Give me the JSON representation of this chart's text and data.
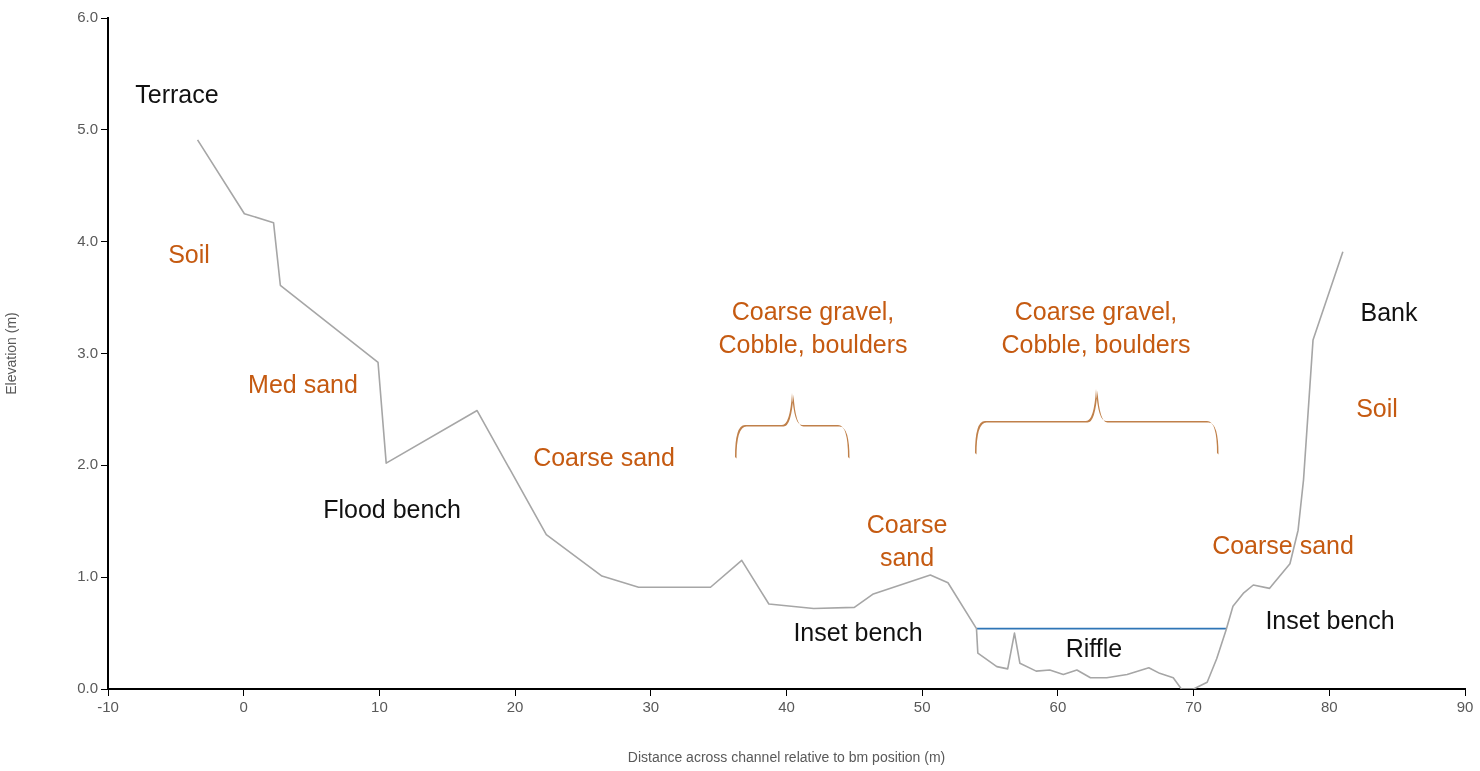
{
  "chart_data": {
    "type": "line",
    "xlabel": "Distance across channel relative to bm position (m)",
    "ylabel": "Elevation (m)",
    "xlim": [
      -10,
      90
    ],
    "xticks": [
      -10,
      0,
      10,
      20,
      30,
      40,
      50,
      60,
      70,
      80,
      90
    ],
    "ylim": [
      0,
      6
    ],
    "yticks": [
      {
        "value": 0,
        "label": "0.0"
      },
      {
        "value": 1,
        "label": "1.0"
      },
      {
        "value": 2,
        "label": "2.0"
      },
      {
        "value": 3,
        "label": "3.0"
      },
      {
        "value": 4,
        "label": "4.0"
      },
      {
        "value": 5,
        "label": "5.0"
      },
      {
        "value": 6,
        "label": "6.0"
      }
    ],
    "grid": false,
    "legend": false,
    "marker": "none",
    "line_style": "solid",
    "series": [
      {
        "color": "#a6a6a6",
        "x": [
          -3.4,
          0.05,
          2.2,
          2.7,
          9.9,
          10.5,
          17.2,
          22.3,
          26.4,
          29.1,
          34.4,
          36.7,
          38.7,
          42.0,
          45.0,
          46.4,
          50.6,
          51.9,
          54.0,
          54.1,
          55.5,
          56.3,
          56.8,
          57.2,
          58.4,
          59.4,
          60.4,
          61.4,
          62.4,
          63.6,
          65.1,
          66.7,
          67.5,
          68.5,
          69.1,
          70.0,
          71.0,
          71.7,
          72.4,
          72.9,
          73.7,
          74.4,
          75.6,
          77.1,
          77.7,
          78.1,
          78.8,
          81.0
        ],
        "values": [
          4.91,
          4.25,
          4.17,
          3.61,
          2.92,
          2.02,
          2.49,
          1.38,
          1.01,
          0.91,
          0.91,
          1.15,
          0.76,
          0.72,
          0.73,
          0.85,
          1.02,
          0.95,
          0.54,
          0.32,
          0.2,
          0.18,
          0.5,
          0.23,
          0.16,
          0.17,
          0.13,
          0.17,
          0.1,
          0.1,
          0.13,
          0.19,
          0.14,
          0.1,
          0.0,
          0.0,
          0.06,
          0.27,
          0.53,
          0.74,
          0.86,
          0.93,
          0.9,
          1.12,
          1.42,
          1.87,
          3.12,
          3.91
        ]
      },
      {
        "color": "#2e75b6",
        "x": [
          54.0,
          72.4
        ],
        "values": [
          0.54,
          0.54
        ]
      }
    ],
    "annotations": [
      "Terrace",
      "Soil",
      "Med sand",
      "Flood bench",
      "Coarse sand",
      "Coarse gravel,\nCobble, boulders",
      "Coarse gravel,\nCobble, boulders",
      "Coarse\nsand",
      "Inset bench",
      "Riffle",
      "Coarse sand",
      "Inset bench",
      "Bank",
      "Soil"
    ]
  }
}
